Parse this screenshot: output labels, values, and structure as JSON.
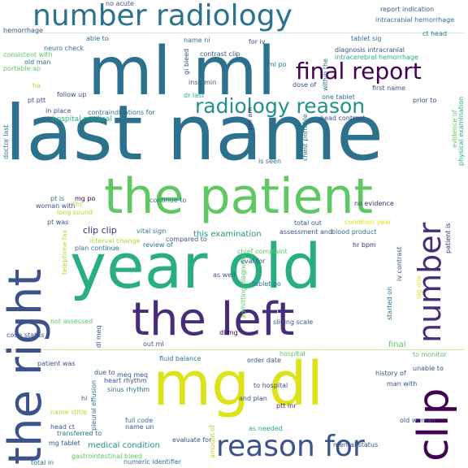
{
  "palette": {
    "dark_purple": "#440154",
    "indigo": "#472c7a",
    "slate_blue": "#3b528b",
    "steel_blue": "#2c728e",
    "teal": "#21918c",
    "sea_green": "#28ae80",
    "green": "#5ec962",
    "lime": "#addc30",
    "yellow": "#dde318"
  },
  "words": {
    "w1": "number radiology",
    "w2": "ml ml",
    "w3": "last name",
    "w4": "the patient",
    "w5": "year old",
    "w6": "the left",
    "w7": "mg dl",
    "w8": "reason for",
    "w9": "final report",
    "w10": "radiology reason",
    "w11": "the right",
    "w12": "number",
    "w13": "clip",
    "w14": "no acute",
    "w15": "hemorrhage",
    "w16": "report indication",
    "w17": "intracranial hemorrhage",
    "w18": "ct head",
    "w19": "able to",
    "w20": "name ni",
    "w21": "for iv",
    "w22": "tablet sig",
    "w23": "gi bleed",
    "w24": "neuro check",
    "w25": "consistent with",
    "w26": "old man",
    "w27": "portable ap",
    "w28": "contrast clip",
    "w29": "diagnosis intracranial",
    "w30": "ml po",
    "w31": "intracerebral hemorrhage",
    "w32": "ha",
    "w33": "insp min",
    "w34": "within the",
    "w35": "dose of",
    "w36": "first name",
    "w37": "pt ptt",
    "w38": "follow up",
    "w39": "dr last",
    "w40": "one tablet",
    "w41": "prior to",
    "w42": "in place",
    "w43": "contraindications for",
    "w44": "hospital medical",
    "w45": "head contrast",
    "w46": "doctor last",
    "w47": "pm am",
    "w48": "chest portable",
    "w49": "evidence of",
    "w50": "physical examination",
    "w51": "is seen",
    "w52": "pt is",
    "w53": "mg po",
    "w54": "continue to",
    "w55": "no evidence",
    "w56": "long sound",
    "w57": "woman with",
    "w58": "thi",
    "w59": "patient is",
    "w60": "pt was",
    "w61": "telephone fax",
    "w62": "clip clip",
    "w63": "vital sign",
    "w64": "total out",
    "w65": "condition year",
    "w66": "interval change",
    "w67": "this examination",
    "w68": "compared to",
    "w69": "assessment and",
    "w70": "blood product",
    "w71": "plan continue",
    "w72": "review of",
    "w73": "hr bpm",
    "w74": "chief complaint",
    "w75": "eval for",
    "w76": "admitting diagnosis",
    "w77": "iv contrast",
    "w78": "as well",
    "w79": "tablet po",
    "w80": "started on",
    "w81": "sig one",
    "w82": "not assessed",
    "w83": "sliding scale",
    "w84": "code status",
    "w85": "dl meq",
    "w86": "out ml",
    "w87": "dl mg",
    "w88": "final",
    "w89": "patient was",
    "w90": "fluid balance",
    "w91": "order date",
    "w92": "hospital",
    "w93": "to monitor",
    "w94": "due to",
    "w95": "meq meq",
    "w96": "unable to",
    "w97": "heart rhythm",
    "w98": "history of",
    "w99": "man with",
    "w100": "to hospital",
    "w101": "hi",
    "w102": "sinus rhythm",
    "w103": "name stitle",
    "w104": "and plan",
    "w105": "ptt inr",
    "w106": "full code",
    "w107": "head ct",
    "w108": "pleural effusion",
    "w109": "name un",
    "w110": "old woman",
    "w111": "transferred to",
    "w112": "as needed",
    "w113": "mg tablet",
    "w114": "medical condition",
    "w115": "evaluate for",
    "w116": "amount of",
    "w117": "mental status",
    "w118": "gastrointestinal bleed",
    "w119": "total in",
    "w120": "numeric identifier"
  }
}
